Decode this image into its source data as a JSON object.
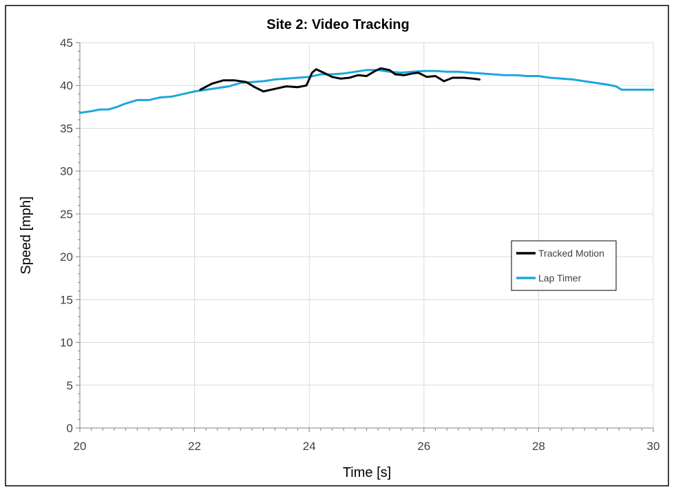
{
  "chart_data": {
    "type": "line",
    "title": "Site 2: Video Tracking",
    "xlabel": "Time [s]",
    "ylabel": "Speed [mph]",
    "xlim": [
      20,
      30
    ],
    "ylim": [
      0,
      45
    ],
    "x_ticks": [
      20,
      22,
      24,
      26,
      28,
      30
    ],
    "y_ticks": [
      0,
      5,
      10,
      15,
      20,
      25,
      30,
      35,
      40,
      45
    ],
    "grid": true,
    "legend_position": "right",
    "series": [
      {
        "name": "Tracked Motion",
        "color": "#000000",
        "points": [
          [
            22.1,
            39.5
          ],
          [
            22.3,
            40.2
          ],
          [
            22.5,
            40.6
          ],
          [
            22.7,
            40.6
          ],
          [
            22.9,
            40.4
          ],
          [
            23.05,
            39.8
          ],
          [
            23.2,
            39.3
          ],
          [
            23.4,
            39.6
          ],
          [
            23.6,
            39.9
          ],
          [
            23.8,
            39.8
          ],
          [
            23.95,
            40.0
          ],
          [
            24.05,
            41.5
          ],
          [
            24.12,
            41.9
          ],
          [
            24.25,
            41.5
          ],
          [
            24.4,
            41.0
          ],
          [
            24.55,
            40.8
          ],
          [
            24.7,
            40.9
          ],
          [
            24.85,
            41.2
          ],
          [
            25.0,
            41.1
          ],
          [
            25.15,
            41.7
          ],
          [
            25.25,
            42.0
          ],
          [
            25.4,
            41.8
          ],
          [
            25.5,
            41.3
          ],
          [
            25.65,
            41.2
          ],
          [
            25.8,
            41.4
          ],
          [
            25.9,
            41.5
          ],
          [
            26.05,
            41.0
          ],
          [
            26.2,
            41.1
          ],
          [
            26.35,
            40.5
          ],
          [
            26.5,
            40.9
          ],
          [
            26.7,
            40.9
          ],
          [
            26.85,
            40.8
          ],
          [
            26.97,
            40.7
          ]
        ]
      },
      {
        "name": "Lap Timer",
        "color": "#1ba7dc",
        "points": [
          [
            20.0,
            36.8
          ],
          [
            20.2,
            37.0
          ],
          [
            20.35,
            37.2
          ],
          [
            20.5,
            37.2
          ],
          [
            20.65,
            37.5
          ],
          [
            20.8,
            37.9
          ],
          [
            21.0,
            38.3
          ],
          [
            21.2,
            38.3
          ],
          [
            21.4,
            38.6
          ],
          [
            21.6,
            38.7
          ],
          [
            21.8,
            39.0
          ],
          [
            22.0,
            39.3
          ],
          [
            22.2,
            39.5
          ],
          [
            22.4,
            39.7
          ],
          [
            22.6,
            39.9
          ],
          [
            22.8,
            40.3
          ],
          [
            23.0,
            40.4
          ],
          [
            23.2,
            40.5
          ],
          [
            23.4,
            40.7
          ],
          [
            23.6,
            40.8
          ],
          [
            23.8,
            40.9
          ],
          [
            24.0,
            41.0
          ],
          [
            24.2,
            41.3
          ],
          [
            24.4,
            41.3
          ],
          [
            24.6,
            41.4
          ],
          [
            24.8,
            41.6
          ],
          [
            25.0,
            41.8
          ],
          [
            25.2,
            41.8
          ],
          [
            25.4,
            41.6
          ],
          [
            25.6,
            41.5
          ],
          [
            25.8,
            41.6
          ],
          [
            26.0,
            41.7
          ],
          [
            26.2,
            41.7
          ],
          [
            26.4,
            41.6
          ],
          [
            26.6,
            41.6
          ],
          [
            26.8,
            41.5
          ],
          [
            27.0,
            41.4
          ],
          [
            27.2,
            41.3
          ],
          [
            27.4,
            41.2
          ],
          [
            27.6,
            41.2
          ],
          [
            27.8,
            41.1
          ],
          [
            28.0,
            41.1
          ],
          [
            28.2,
            40.9
          ],
          [
            28.4,
            40.8
          ],
          [
            28.6,
            40.7
          ],
          [
            28.8,
            40.5
          ],
          [
            29.0,
            40.3
          ],
          [
            29.2,
            40.1
          ],
          [
            29.35,
            39.9
          ],
          [
            29.45,
            39.5
          ],
          [
            29.7,
            39.5
          ],
          [
            30.0,
            39.5
          ]
        ]
      }
    ]
  }
}
